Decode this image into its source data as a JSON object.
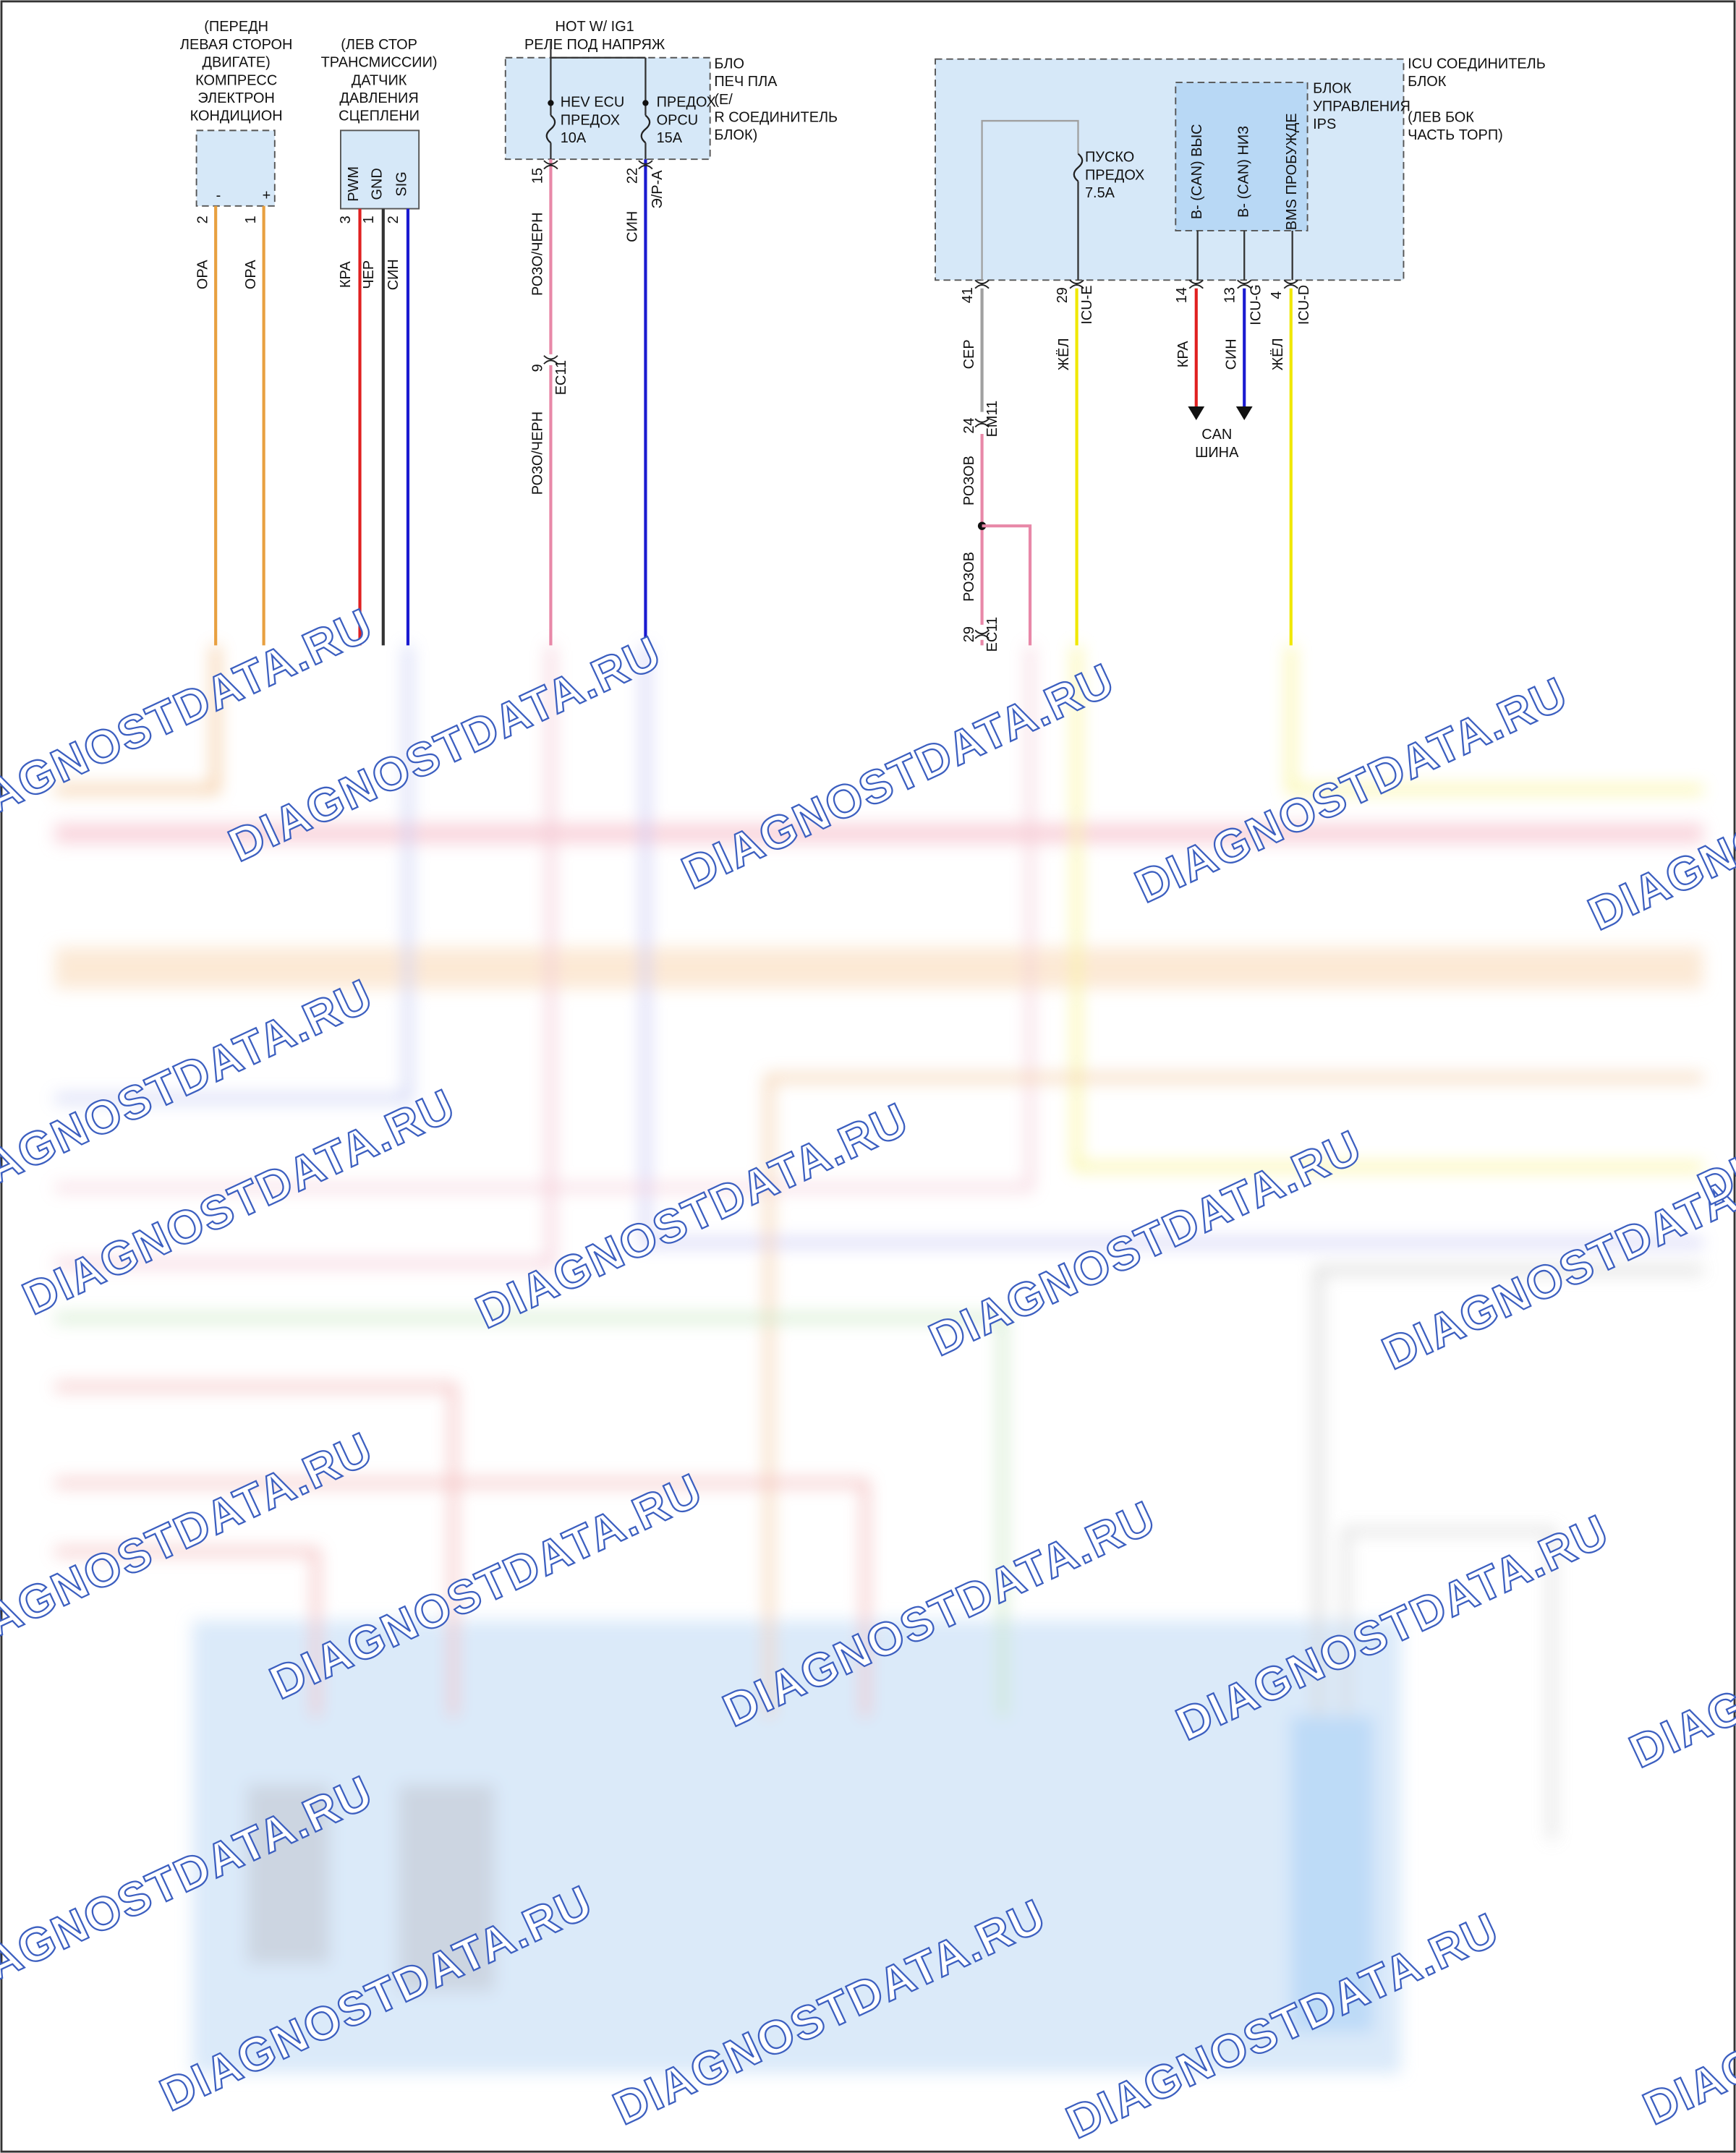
{
  "compressor": {
    "label": [
      "(ПЕРЕДН",
      "ЛЕВАЯ СТОРОН",
      "ДВИГАТЕ)",
      "КОМПРЕСС",
      "ЭЛЕКТРОН",
      "КОНДИЦИОН"
    ],
    "pins": [
      "2",
      "1"
    ],
    "pin_signs": [
      "-",
      "+"
    ],
    "wires": [
      "ОРА",
      "ОРА"
    ]
  },
  "clutch_sensor": {
    "label": [
      "(ЛЕВ СТОР",
      "ТРАНСМИССИИ)",
      "ДАТЧИК",
      "ДАВЛЕНИЯ",
      "СЦЕПЛЕНИ"
    ],
    "pin_names": [
      "PWM",
      "GND",
      "SIG"
    ],
    "pins": [
      "3",
      "1",
      "2"
    ],
    "wires": [
      "КРА",
      "ЧЕР",
      "СИН"
    ]
  },
  "junction_block": {
    "supply": [
      "HOT W/ IG1",
      "РЕЛЕ ПОД НАПРЯЖ"
    ],
    "label": [
      "БЛО",
      "ПЕЧ ПЛА",
      "(E/",
      "R СОЕДИНИТЕЛЬ",
      "БЛОК)"
    ],
    "fuses": [
      [
        "HEV ECU",
        "ПРЕДОХ",
        "10A"
      ],
      [
        "ПРЕДОХ",
        "OPCU",
        "15A"
      ]
    ],
    "pins": [
      "15",
      "22"
    ],
    "connector": "Э/Р-А",
    "wires": [
      "РОЗО/ЧЕРН",
      "СИН"
    ],
    "splice": {
      "pin": "9",
      "connector": "EC11"
    },
    "wire_after_splice": "РОЗО/ЧЕРН"
  },
  "icu_block": {
    "label": [
      "ICU СОЕДИНИТЕЛЬ",
      "БЛОК"
    ],
    "location": [
      "(ЛЕВ БОК",
      "ЧАСТЬ ТОРП)"
    ],
    "ips": {
      "label": [
        "БЛОК",
        "УПРАВЛЕНИЯ",
        "IPS"
      ],
      "pins": [
        "B- (CAN) ВЫС",
        "B- (CAN) НИЗ",
        "BMS ПРОБУЖДЕ"
      ]
    },
    "fuse": [
      "ПУСКО",
      "ПРЕДОХ",
      "7.5A"
    ],
    "pins": [
      "41",
      "29",
      "14",
      "13",
      "4"
    ],
    "connectors": [
      "ICU-E",
      "ICU-G",
      "ICU-D"
    ],
    "wires": [
      "СЕР",
      "ЖЁЛ",
      "КРА",
      "СИН",
      "ЖЁЛ"
    ],
    "splice1": {
      "pin": "24",
      "connector": "EM11"
    },
    "wires_after": [
      "РОЗОВ",
      "РОЗОВ"
    ],
    "splice2": {
      "pin": "29",
      "connector": "EC11"
    },
    "bus": [
      "CAN",
      "ШИНА"
    ]
  },
  "watermark": "DIAGNOSTDATA.RU"
}
